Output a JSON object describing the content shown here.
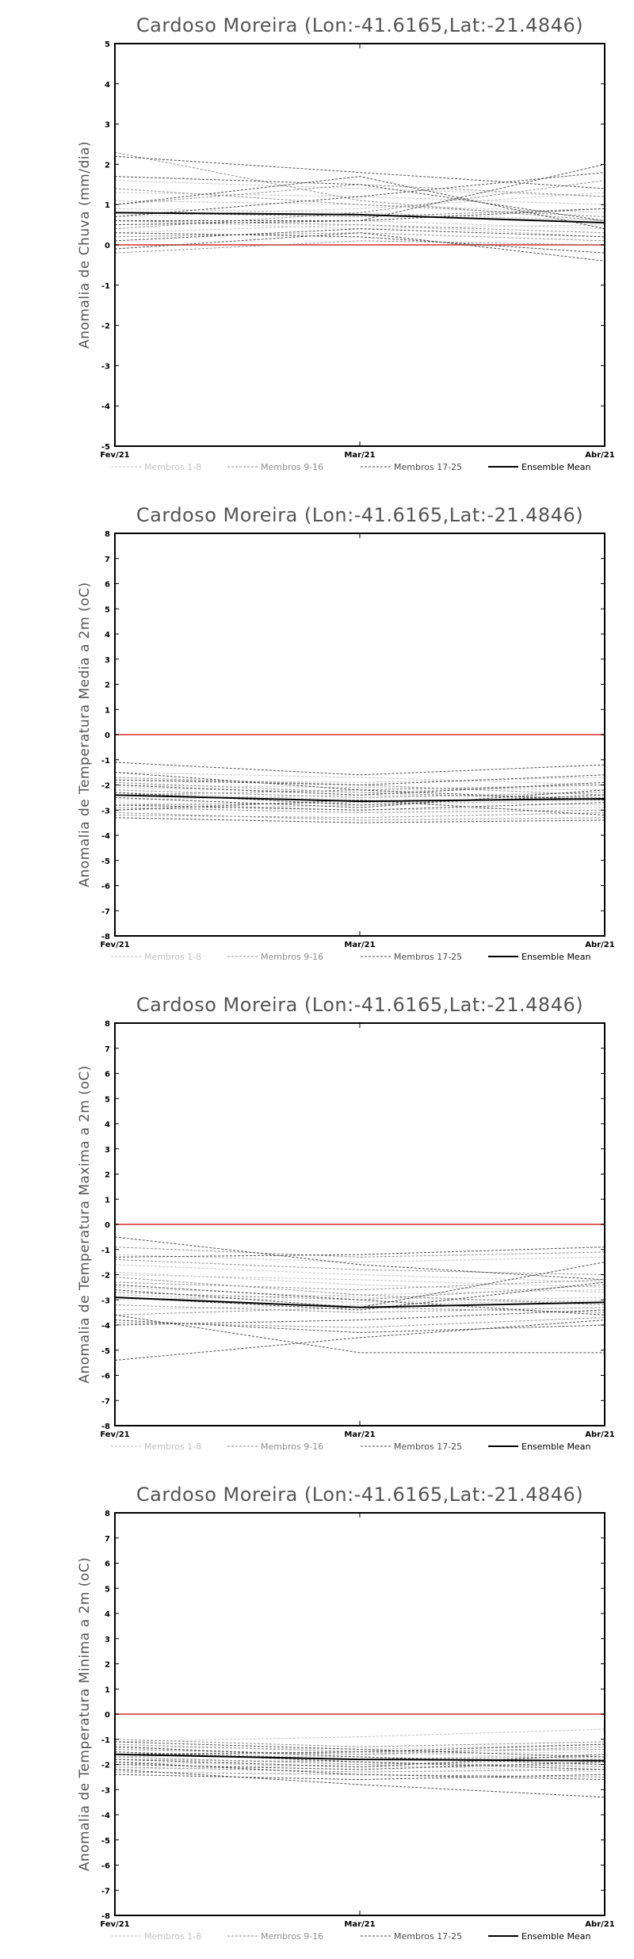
{
  "legend": [
    {
      "label": "Membros 1-8",
      "color": "#c2c2c2",
      "dash": "3,2",
      "width": 1
    },
    {
      "label": "Membros 9-16",
      "color": "#8f8f8f",
      "dash": "3,2",
      "width": 1
    },
    {
      "label": "Membros 17-25",
      "color": "#4d4d4d",
      "dash": "3,2",
      "width": 1
    },
    {
      "label": "Ensemble Mean",
      "color": "#000000",
      "dash": "",
      "width": 2
    }
  ],
  "chart_data": [
    {
      "type": "line",
      "title": "Cardoso Moreira (Lon:-41.6165,Lat:-21.4846)",
      "ylabel": "Anomalia de Chuva (mm/dia)",
      "categories": [
        "Fev/21",
        "Mar/21",
        "Abr/21"
      ],
      "ylim": [
        -5,
        5
      ],
      "yticks": [
        -5,
        -4,
        -3,
        -2,
        -1,
        0,
        1,
        2,
        3,
        4,
        5
      ],
      "zero_line_color": "#e06060",
      "members_1_8": [
        [
          1.3,
          1.2,
          1.0
        ],
        [
          0.9,
          0.8,
          0.6
        ],
        [
          0.5,
          0.6,
          0.4
        ],
        [
          1.6,
          1.4,
          1.2
        ],
        [
          0.7,
          0.9,
          1.3
        ],
        [
          0.3,
          0.5,
          0.2
        ],
        [
          1.1,
          1.0,
          0.8
        ],
        [
          0.6,
          0.4,
          0.5
        ]
      ],
      "members_9_16": [
        [
          2.3,
          1.1,
          0.6
        ],
        [
          0.4,
          0.8,
          1.6
        ],
        [
          0.6,
          0.5,
          0.3
        ],
        [
          1.0,
          1.5,
          1.2
        ],
        [
          0.2,
          0.3,
          0.1
        ],
        [
          0.8,
          0.7,
          0.9
        ],
        [
          -0.2,
          0.1,
          0.0
        ],
        [
          1.4,
          1.0,
          0.7
        ]
      ],
      "members_17_25": [
        [
          1.7,
          1.5,
          0.6
        ],
        [
          0.5,
          0.6,
          2.0
        ],
        [
          1.0,
          1.7,
          0.4
        ],
        [
          0.3,
          0.2,
          -0.2
        ],
        [
          0.7,
          1.2,
          1.8
        ],
        [
          0.1,
          0.4,
          0.2
        ],
        [
          -0.1,
          0.3,
          -0.4
        ],
        [
          0.6,
          0.6,
          0.9
        ],
        [
          2.2,
          1.8,
          1.4
        ]
      ],
      "ensemble_mean": [
        0.8,
        0.75,
        0.55
      ]
    },
    {
      "type": "line",
      "title": "Cardoso Moreira (Lon:-41.6165,Lat:-21.4846)",
      "ylabel": "Anomalia de Temperatura Media a 2m (oC)",
      "categories": [
        "Fev/21",
        "Mar/21",
        "Abr/21"
      ],
      "ylim": [
        -8,
        8
      ],
      "yticks": [
        -8,
        -7,
        -6,
        -5,
        -4,
        -3,
        -2,
        -1,
        0,
        1,
        2,
        3,
        4,
        5,
        6,
        7,
        8
      ],
      "zero_line_color": "#e06060",
      "members_1_8": [
        [
          -1.8,
          -1.9,
          -1.7
        ],
        [
          -2.1,
          -2.3,
          -2.0
        ],
        [
          -2.6,
          -2.4,
          -2.5
        ],
        [
          -1.5,
          -1.7,
          -2.0
        ],
        [
          -3.0,
          -2.8,
          -2.6
        ],
        [
          -2.3,
          -2.6,
          -2.8
        ],
        [
          -2.0,
          -2.1,
          -2.2
        ],
        [
          -2.7,
          -3.0,
          -2.9
        ]
      ],
      "members_9_16": [
        [
          -2.2,
          -2.5,
          -2.3
        ],
        [
          -2.9,
          -3.1,
          -3.0
        ],
        [
          -1.7,
          -2.0,
          -2.4
        ],
        [
          -3.2,
          -3.3,
          -3.1
        ],
        [
          -2.4,
          -2.2,
          -2.0
        ],
        [
          -2.8,
          -2.7,
          -2.5
        ],
        [
          -1.9,
          -2.3,
          -2.6
        ],
        [
          -3.1,
          -3.4,
          -3.3
        ]
      ],
      "members_17_25": [
        [
          -1.1,
          -1.6,
          -1.2
        ],
        [
          -2.5,
          -2.9,
          -2.2
        ],
        [
          -3.3,
          -3.5,
          -3.4
        ],
        [
          -2.0,
          -2.4,
          -1.9
        ],
        [
          -2.8,
          -3.0,
          -2.7
        ],
        [
          -1.5,
          -2.2,
          -2.6
        ],
        [
          -3.0,
          -2.6,
          -3.2
        ],
        [
          -2.3,
          -2.8,
          -2.4
        ],
        [
          -1.8,
          -2.0,
          -1.6
        ]
      ],
      "ensemble_mean": [
        -2.4,
        -2.65,
        -2.55
      ]
    },
    {
      "type": "line",
      "title": "Cardoso Moreira (Lon:-41.6165,Lat:-21.4846)",
      "ylabel": "Anomalia de Temperatura Maxima a 2m (oC)",
      "categories": [
        "Fev/21",
        "Mar/21",
        "Abr/21"
      ],
      "ylim": [
        -8,
        8
      ],
      "yticks": [
        -8,
        -7,
        -6,
        -5,
        -4,
        -3,
        -2,
        -1,
        0,
        1,
        2,
        3,
        4,
        5,
        6,
        7,
        8
      ],
      "zero_line_color": "#e06060",
      "members_1_8": [
        [
          -1.2,
          -1.5,
          -1.3
        ],
        [
          -2.0,
          -2.2,
          -2.5
        ],
        [
          -3.0,
          -2.8,
          -2.6
        ],
        [
          -1.6,
          -2.0,
          -2.3
        ],
        [
          -2.5,
          -2.9,
          -3.1
        ],
        [
          -3.4,
          -3.2,
          -3.0
        ],
        [
          -1.9,
          -2.4,
          -2.7
        ],
        [
          -2.8,
          -3.1,
          -2.9
        ]
      ],
      "members_9_16": [
        [
          -0.9,
          -1.3,
          -1.1
        ],
        [
          -2.3,
          -2.6,
          -2.2
        ],
        [
          -3.6,
          -3.3,
          -3.5
        ],
        [
          -1.4,
          -1.8,
          -2.0
        ],
        [
          -2.7,
          -3.0,
          -2.4
        ],
        [
          -3.9,
          -4.1,
          -3.7
        ],
        [
          -2.1,
          -2.8,
          -3.2
        ],
        [
          -3.2,
          -3.5,
          -3.3
        ]
      ],
      "members_17_25": [
        [
          -0.5,
          -1.6,
          -2.2
        ],
        [
          -5.4,
          -4.5,
          -3.8
        ],
        [
          -3.6,
          -5.1,
          -5.1
        ],
        [
          -2.6,
          -3.3,
          -1.5
        ],
        [
          -1.3,
          -1.2,
          -0.9
        ],
        [
          -4.0,
          -3.8,
          -3.4
        ],
        [
          -2.9,
          -3.4,
          -2.3
        ],
        [
          -3.8,
          -4.3,
          -4.0
        ],
        [
          -2.4,
          -3.0,
          -3.6
        ]
      ],
      "ensemble_mean": [
        -2.9,
        -3.3,
        -3.1
      ]
    },
    {
      "type": "line",
      "title": "Cardoso Moreira (Lon:-41.6165,Lat:-21.4846)",
      "ylabel": "Anomalia de Temperatura Minima a 2m (oC)",
      "categories": [
        "Fev/21",
        "Mar/21",
        "Abr/21"
      ],
      "ylim": [
        -8,
        8
      ],
      "yticks": [
        -8,
        -7,
        -6,
        -5,
        -4,
        -3,
        -2,
        -1,
        0,
        1,
        2,
        3,
        4,
        5,
        6,
        7,
        8
      ],
      "zero_line_color": "#e06060",
      "members_1_8": [
        [
          -1.1,
          -0.9,
          -0.6
        ],
        [
          -1.4,
          -1.6,
          -1.5
        ],
        [
          -1.7,
          -1.5,
          -1.8
        ],
        [
          -2.0,
          -1.8,
          -1.6
        ],
        [
          -1.3,
          -1.4,
          -1.2
        ],
        [
          -1.9,
          -2.1,
          -2.0
        ],
        [
          -1.6,
          -1.7,
          -1.9
        ],
        [
          -2.2,
          -2.0,
          -2.3
        ]
      ],
      "members_9_16": [
        [
          -1.0,
          -1.3,
          -1.1
        ],
        [
          -1.5,
          -1.8,
          -1.7
        ],
        [
          -2.1,
          -2.3,
          -2.2
        ],
        [
          -1.2,
          -1.5,
          -1.4
        ],
        [
          -1.8,
          -1.9,
          -2.1
        ],
        [
          -2.3,
          -2.4,
          -2.5
        ],
        [
          -1.4,
          -1.6,
          -1.3
        ],
        [
          -1.7,
          -2.0,
          -1.8
        ]
      ],
      "members_17_25": [
        [
          -2.2,
          -2.8,
          -3.3
        ],
        [
          -1.9,
          -2.4,
          -2.6
        ],
        [
          -1.3,
          -1.7,
          -2.0
        ],
        [
          -1.6,
          -1.5,
          -1.2
        ],
        [
          -2.0,
          -2.2,
          -1.9
        ],
        [
          -1.1,
          -1.4,
          -1.7
        ],
        [
          -2.4,
          -2.6,
          -2.4
        ],
        [
          -1.5,
          -1.9,
          -2.2
        ],
        [
          -1.8,
          -2.1,
          -1.6
        ]
      ],
      "ensemble_mean": [
        -1.6,
        -1.8,
        -1.85
      ]
    }
  ]
}
